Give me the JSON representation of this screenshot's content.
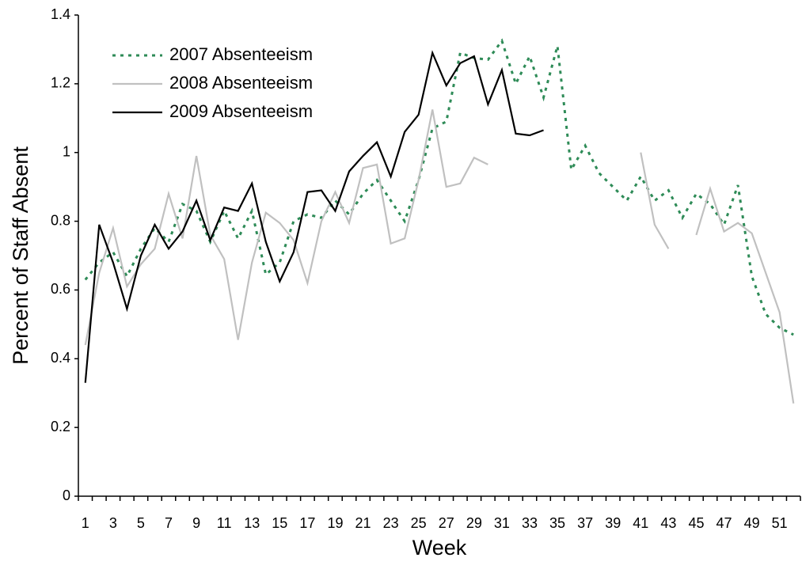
{
  "chart_data": {
    "type": "line",
    "x_label": "Week",
    "y_label": "Percent of Staff Absent",
    "categories": [
      1,
      null,
      3,
      null,
      5,
      null,
      7,
      null,
      9,
      null,
      11,
      null,
      13,
      null,
      15,
      null,
      17,
      null,
      19,
      null,
      21,
      null,
      23,
      null,
      25,
      null,
      27,
      null,
      29,
      null,
      31,
      null,
      33,
      null,
      35,
      null,
      37,
      null,
      39,
      null,
      41,
      null,
      43,
      null,
      45,
      null,
      47,
      null,
      49,
      null,
      51,
      null
    ],
    "series": [
      {
        "name": "2007 Absenteeism",
        "color": "#2e8b57",
        "dash": "dotted",
        "values": [
          0.63,
          0.68,
          0.71,
          0.64,
          0.72,
          0.78,
          0.74,
          0.85,
          0.83,
          0.74,
          0.83,
          0.75,
          0.83,
          0.645,
          0.68,
          0.8,
          0.82,
          0.81,
          0.86,
          0.82,
          0.88,
          0.92,
          0.86,
          0.8,
          0.92,
          1.07,
          1.09,
          1.29,
          1.275,
          1.27,
          1.325,
          1.2,
          1.28,
          1.16,
          1.31,
          0.95,
          1.02,
          0.94,
          0.9,
          0.86,
          0.93,
          0.86,
          0.89,
          0.81,
          0.88,
          0.85,
          0.79,
          0.905,
          0.64,
          0.53,
          0.49,
          0.47
        ]
      },
      {
        "name": "2008 Absenteeism",
        "color": "#c0c0c0",
        "dash": "solid",
        "values": [
          0.44,
          0.65,
          0.78,
          0.61,
          0.675,
          0.72,
          0.88,
          0.75,
          0.99,
          0.76,
          0.69,
          0.455,
          0.68,
          0.825,
          0.795,
          0.745,
          0.62,
          0.8,
          0.885,
          0.795,
          0.955,
          0.965,
          0.735,
          0.75,
          0.92,
          1.125,
          0.9,
          0.91,
          0.985,
          0.965,
          null,
          null,
          null,
          null,
          null,
          null,
          null,
          null,
          null,
          null,
          1.0,
          0.79,
          0.72,
          null,
          0.76,
          0.895,
          0.77,
          0.795,
          0.765,
          0.65,
          0.535,
          0.27
        ]
      },
      {
        "name": "2009 Absenteeism",
        "color": "#000000",
        "dash": "solid",
        "values": [
          0.33,
          0.79,
          0.68,
          0.545,
          0.7,
          0.79,
          0.72,
          0.77,
          0.86,
          0.745,
          0.84,
          0.83,
          0.91,
          0.74,
          0.625,
          0.71,
          0.885,
          0.89,
          0.83,
          0.945,
          0.99,
          1.03,
          0.93,
          1.06,
          1.11,
          1.29,
          1.195,
          1.26,
          1.28,
          1.14,
          1.24,
          1.055,
          1.05,
          1.065,
          null,
          null,
          null,
          null,
          null,
          null,
          null,
          null,
          null,
          null,
          null,
          null,
          null,
          null,
          null,
          null,
          null,
          null
        ]
      }
    ],
    "ylim": [
      0,
      1.4
    ],
    "yticks": [
      0,
      0.2,
      0.4,
      0.6,
      0.8,
      1,
      1.2,
      1.4
    ],
    "grid": false,
    "legend": "upper left"
  }
}
